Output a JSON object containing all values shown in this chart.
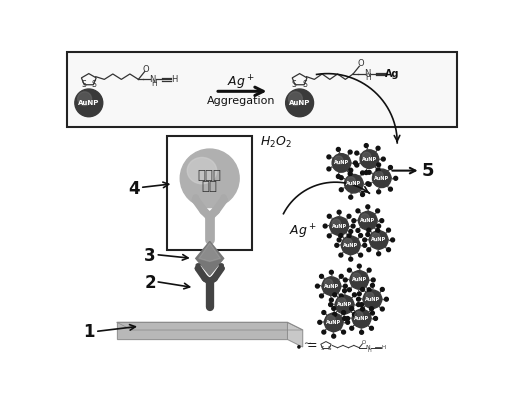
{
  "bg_color": "#ffffff",
  "aunp_dark": "#3a3a3a",
  "aunp_mid": "#666666",
  "aunp_light": "#999999",
  "sphere_color": "#b0b0b0",
  "sphere_light": "#d0d0d0",
  "antibody_sec_color": "#aaaaaa",
  "antibody_pri_color": "#555555",
  "antigen_color": "#888888",
  "plate_top": "#d0d0d0",
  "plate_front": "#b8b8b8",
  "plate_side": "#c8c8c8",
  "chinese_label1": "銀纳米",
  "chinese_label2": "颗粒",
  "label1": "1",
  "label2": "2",
  "label3": "3",
  "label4": "4",
  "label5": "5",
  "fig_width": 5.12,
  "fig_height": 4.08,
  "dpi": 100
}
